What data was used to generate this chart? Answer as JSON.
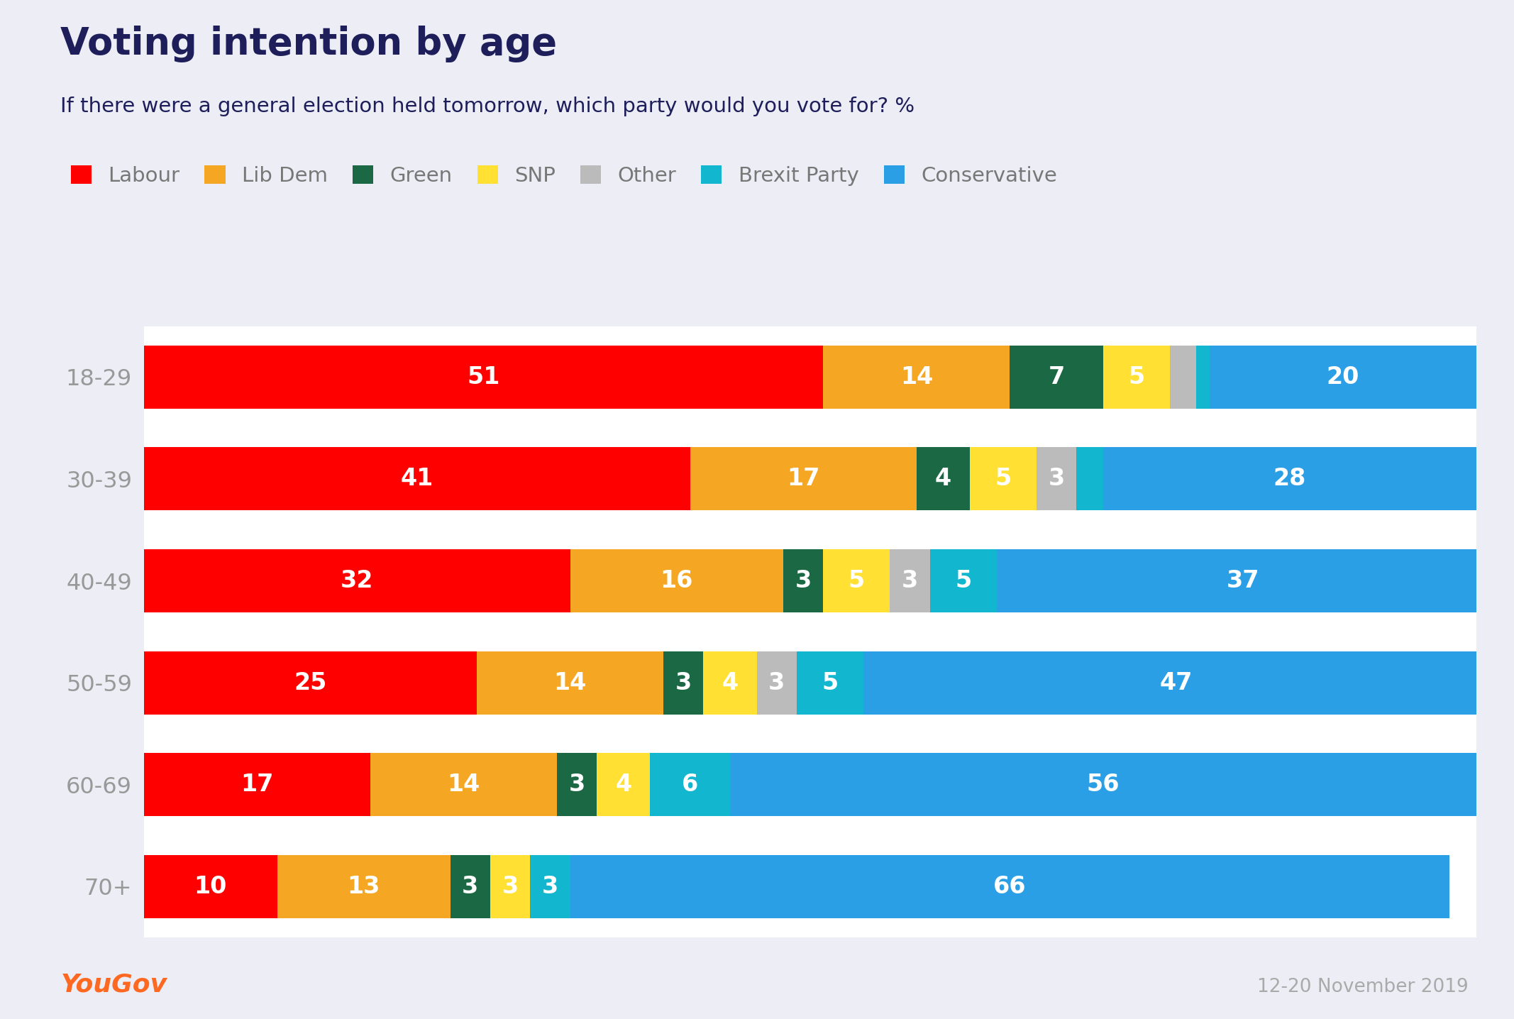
{
  "title": "Voting intention by age",
  "subtitle": "If there were a general election held tomorrow, which party would you vote for? %",
  "source": "12-20 November 2019",
  "background_color": "#ECEDF5",
  "plot_background": "#FFFFFF",
  "age_groups": [
    "18-29",
    "30-39",
    "40-49",
    "50-59",
    "60-69",
    "70+"
  ],
  "parties": [
    "Labour",
    "Lib Dem",
    "Green",
    "SNP",
    "Other",
    "Brexit Party",
    "Conservative"
  ],
  "colors": {
    "Labour": "#FF0000",
    "Lib Dem": "#F5A623",
    "Green": "#1A6844",
    "SNP": "#FFE033",
    "Other": "#BBBBBB",
    "Brexit Party": "#12B6CF",
    "Conservative": "#2B9FE6"
  },
  "data": {
    "18-29": [
      51,
      14,
      7,
      5,
      2,
      1,
      20
    ],
    "30-39": [
      41,
      17,
      4,
      5,
      3,
      2,
      28
    ],
    "40-49": [
      32,
      16,
      3,
      5,
      3,
      5,
      37
    ],
    "50-59": [
      25,
      14,
      3,
      4,
      3,
      5,
      47
    ],
    "60-69": [
      17,
      14,
      3,
      4,
      0,
      6,
      56
    ],
    "70+": [
      10,
      13,
      3,
      3,
      0,
      3,
      66
    ]
  },
  "show_labels": {
    "18-29": [
      true,
      true,
      true,
      true,
      false,
      false,
      true
    ],
    "30-39": [
      true,
      true,
      true,
      true,
      true,
      false,
      true
    ],
    "40-49": [
      true,
      true,
      true,
      true,
      true,
      true,
      true
    ],
    "50-59": [
      true,
      true,
      true,
      true,
      true,
      true,
      true
    ],
    "60-69": [
      true,
      true,
      true,
      true,
      false,
      true,
      true
    ],
    "70+": [
      true,
      true,
      true,
      true,
      false,
      true,
      true
    ]
  },
  "title_color": "#1E1E5A",
  "subtitle_color": "#1E1E5A",
  "tick_color": "#999999",
  "label_color": "#FFFFFF",
  "legend_text_color": "#777777",
  "title_fontsize": 38,
  "subtitle_fontsize": 21,
  "label_fontsize": 24,
  "legend_fontsize": 21,
  "tick_fontsize": 23,
  "bar_height": 0.62,
  "yougov_color": "#FF6820",
  "source_color": "#AAAAAA"
}
